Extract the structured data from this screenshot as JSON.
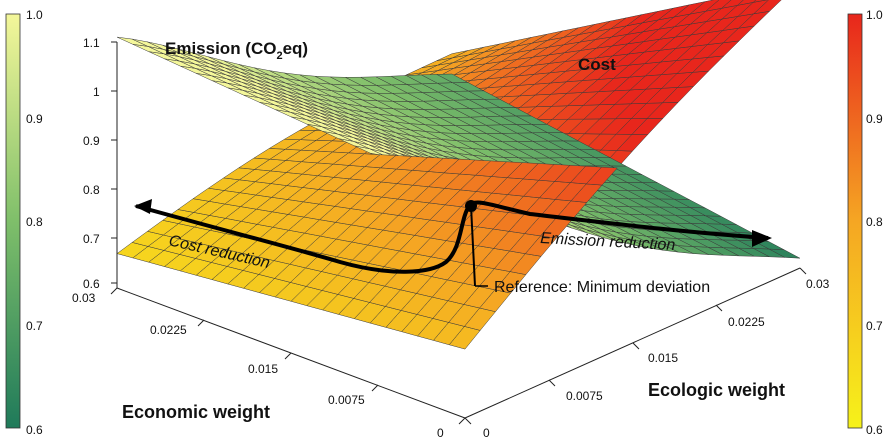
{
  "chart_data": {
    "type": "surface",
    "title": "",
    "surfaces": [
      {
        "name": "Emission (CO2eq)",
        "label_main": "Emission (CO",
        "label_sub": "2",
        "label_tail": "eq)",
        "colormap": "green-yellow"
      },
      {
        "name": "Cost",
        "label_main": "Cost",
        "colormap": "yellow-red"
      }
    ],
    "xlabel": "Economic weight",
    "ylabel": "Ecologic weight",
    "x_ticks": [
      "0.03",
      "0.0225",
      "0.015",
      "0.0075",
      "0"
    ],
    "y_ticks": [
      "0",
      "0.0075",
      "0.015",
      "0.0225",
      "0.03"
    ],
    "z_ticks": [
      "0.6",
      "0.7",
      "0.8",
      "0.9",
      "1",
      "1.1"
    ],
    "zlim": [
      0.6,
      1.1
    ],
    "colorbars": [
      {
        "side": "left",
        "colormap": "green-yellow",
        "ticks": [
          "1.0",
          "0.9",
          "0.8",
          "0.7",
          "0.6"
        ],
        "range": [
          0.6,
          1.0
        ]
      },
      {
        "side": "right",
        "colormap": "yellow-red",
        "ticks": [
          "1.0",
          "0.9",
          "0.8",
          "0.7",
          "0.6"
        ],
        "range": [
          0.6,
          1.0
        ]
      }
    ],
    "annotations": {
      "cost_reduction": "Cost reduction",
      "emission_reduction": "Emission reduction",
      "reference": "Reference: Minimum deviation"
    }
  }
}
